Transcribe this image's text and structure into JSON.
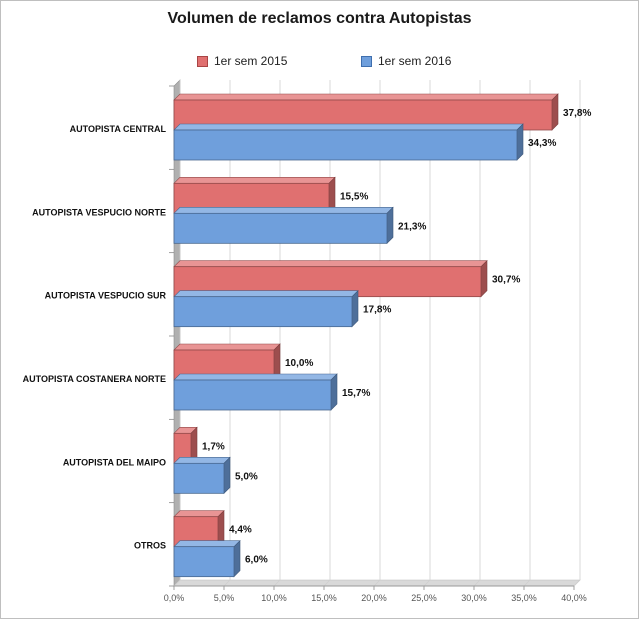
{
  "chart_data": {
    "type": "bar",
    "orientation": "horizontal",
    "title": "Volumen de reclamos contra Autopistas",
    "categories": [
      "AUTOPISTA CENTRAL",
      "AUTOPISTA VESPUCIO NORTE",
      "AUTOPISTA VESPUCIO SUR",
      "AUTOPISTA COSTANERA NORTE",
      "AUTOPISTA DEL MAIPO",
      "OTROS"
    ],
    "series": [
      {
        "name": "1er sem 2015",
        "color": "#e07070",
        "values": [
          37.8,
          15.5,
          30.7,
          10.0,
          1.7,
          4.4
        ],
        "labels": [
          "37,8%",
          "15,5%",
          "30,7%",
          "10,0%",
          "1,7%",
          "4,4%"
        ]
      },
      {
        "name": "1er sem 2016",
        "color": "#6f9fdc",
        "values": [
          34.3,
          21.3,
          17.8,
          15.7,
          5.0,
          6.0
        ],
        "labels": [
          "34,3%",
          "21,3%",
          "17,8%",
          "15,7%",
          "5,0%",
          "6,0%"
        ]
      }
    ],
    "xlim": [
      0,
      40
    ],
    "xticks": [
      "0,0%",
      "5,0%",
      "10,0%",
      "15,0%",
      "20,0%",
      "25,0%",
      "30,0%",
      "35,0%",
      "40,0%"
    ],
    "grid": true,
    "legend": "top"
  }
}
